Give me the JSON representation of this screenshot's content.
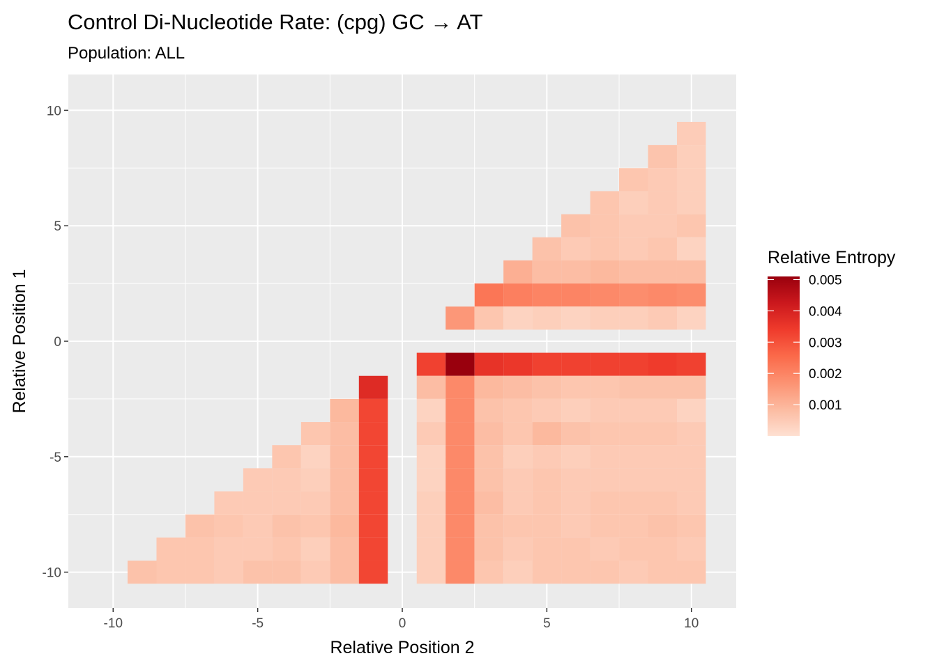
{
  "chart_data": {
    "type": "heatmap",
    "title": "Control Di-Nucleotide Rate: (cpg) GC → AT",
    "subtitle": "Population: ALL",
    "xlabel": "Relative Position 2",
    "ylabel": "Relative Position 1",
    "xlim": [
      -10.5,
      10.5
    ],
    "ylim": [
      -10.5,
      10.5
    ],
    "x_ticks": [
      -10,
      -5,
      0,
      5,
      10
    ],
    "y_ticks": [
      -10,
      -5,
      0,
      5,
      10
    ],
    "x_tick_labels": [
      "-10",
      "-5",
      "0",
      "5",
      "10"
    ],
    "y_tick_labels": [
      "-10",
      "-5",
      "0",
      "5",
      "10"
    ],
    "grid": true,
    "legend": {
      "title": "Relative Entropy",
      "position": "right",
      "min": 0.0,
      "max": 0.0051,
      "ticks": [
        0.001,
        0.002,
        0.003,
        0.004,
        0.005
      ],
      "tick_labels": [
        "0.001",
        "0.002",
        "0.003",
        "0.004",
        "0.005"
      ],
      "colors": [
        "#fee0d2",
        "#fcbba1",
        "#fc9272",
        "#fb6a4a",
        "#ef3b2c",
        "#cb181d",
        "#99000d"
      ]
    },
    "rows": [
      {
        "y": 9,
        "cells": [
          [
            10,
            0.00045
          ]
        ]
      },
      {
        "y": 8,
        "cells": [
          [
            9,
            0.00065
          ],
          [
            10,
            0.0004
          ]
        ]
      },
      {
        "y": 7,
        "cells": [
          [
            8,
            0.0006
          ],
          [
            9,
            0.0005
          ],
          [
            10,
            0.0004
          ]
        ]
      },
      {
        "y": 6,
        "cells": [
          [
            7,
            0.0006
          ],
          [
            8,
            0.0004
          ],
          [
            9,
            0.0005
          ],
          [
            10,
            0.0004
          ]
        ]
      },
      {
        "y": 5,
        "cells": [
          [
            6,
            0.0007
          ],
          [
            7,
            0.0006
          ],
          [
            8,
            0.0005
          ],
          [
            9,
            0.0005
          ],
          [
            10,
            0.0006
          ]
        ]
      },
      {
        "y": 4,
        "cells": [
          [
            5,
            0.0007
          ],
          [
            6,
            0.0005
          ],
          [
            7,
            0.0006
          ],
          [
            8,
            0.0005
          ],
          [
            9,
            0.0006
          ],
          [
            10,
            0.0003
          ]
        ]
      },
      {
        "y": 3,
        "cells": [
          [
            4,
            0.0011
          ],
          [
            5,
            0.0008
          ],
          [
            6,
            0.0008
          ],
          [
            7,
            0.0009
          ],
          [
            8,
            0.0008
          ],
          [
            9,
            0.0008
          ],
          [
            10,
            0.0008
          ]
        ]
      },
      {
        "y": 2,
        "cells": [
          [
            3,
            0.0023
          ],
          [
            4,
            0.0021
          ],
          [
            5,
            0.002
          ],
          [
            6,
            0.002
          ],
          [
            7,
            0.0019
          ],
          [
            8,
            0.0018
          ],
          [
            9,
            0.0019
          ],
          [
            10,
            0.0018
          ]
        ]
      },
      {
        "y": 1,
        "cells": [
          [
            2,
            0.0016
          ],
          [
            3,
            0.0006
          ],
          [
            4,
            0.0003
          ],
          [
            5,
            0.0004
          ],
          [
            6,
            0.0003
          ],
          [
            7,
            0.0004
          ],
          [
            8,
            0.0004
          ],
          [
            9,
            0.0005
          ],
          [
            10,
            0.0003
          ]
        ]
      },
      {
        "y": -1,
        "cells": [
          [
            1,
            0.0033
          ],
          [
            2,
            0.0051
          ],
          [
            3,
            0.0036
          ],
          [
            4,
            0.0035
          ],
          [
            5,
            0.0033
          ],
          [
            6,
            0.0033
          ],
          [
            7,
            0.0033
          ],
          [
            8,
            0.0033
          ],
          [
            9,
            0.0034
          ],
          [
            10,
            0.0033
          ]
        ]
      },
      {
        "y": -2,
        "cells": [
          [
            -1,
            0.0038
          ],
          [
            1,
            0.0008
          ],
          [
            2,
            0.0019
          ],
          [
            3,
            0.0009
          ],
          [
            4,
            0.0008
          ],
          [
            5,
            0.0007
          ],
          [
            6,
            0.0006
          ],
          [
            7,
            0.0006
          ],
          [
            8,
            0.0007
          ],
          [
            9,
            0.0007
          ],
          [
            10,
            0.0007
          ]
        ]
      },
      {
        "y": -3,
        "cells": [
          [
            -2,
            0.0009
          ],
          [
            -1,
            0.0032
          ],
          [
            1,
            0.0003
          ],
          [
            2,
            0.0019
          ],
          [
            3,
            0.0007
          ],
          [
            4,
            0.0006
          ],
          [
            5,
            0.0005
          ],
          [
            6,
            0.0004
          ],
          [
            7,
            0.0005
          ],
          [
            8,
            0.0005
          ],
          [
            9,
            0.0005
          ],
          [
            10,
            0.0003
          ]
        ]
      },
      {
        "y": -4,
        "cells": [
          [
            -3,
            0.0006
          ],
          [
            -2,
            0.0008
          ],
          [
            -1,
            0.0032
          ],
          [
            1,
            0.0005
          ],
          [
            2,
            0.0019
          ],
          [
            3,
            0.0008
          ],
          [
            4,
            0.0006
          ],
          [
            5,
            0.0009
          ],
          [
            6,
            0.0007
          ],
          [
            7,
            0.0006
          ],
          [
            8,
            0.0006
          ],
          [
            9,
            0.0006
          ],
          [
            10,
            0.0005
          ]
        ]
      },
      {
        "y": -5,
        "cells": [
          [
            -4,
            0.0006
          ],
          [
            -3,
            0.0003
          ],
          [
            -2,
            0.0008
          ],
          [
            -1,
            0.0032
          ],
          [
            1,
            0.0003
          ],
          [
            2,
            0.0019
          ],
          [
            3,
            0.0007
          ],
          [
            4,
            0.0004
          ],
          [
            5,
            0.0005
          ],
          [
            6,
            0.0004
          ],
          [
            7,
            0.0005
          ],
          [
            8,
            0.0005
          ],
          [
            9,
            0.0005
          ],
          [
            10,
            0.0005
          ]
        ]
      },
      {
        "y": -6,
        "cells": [
          [
            -5,
            0.0005
          ],
          [
            -4,
            0.0005
          ],
          [
            -3,
            0.0004
          ],
          [
            -2,
            0.0008
          ],
          [
            -1,
            0.0032
          ],
          [
            1,
            0.0003
          ],
          [
            2,
            0.0019
          ],
          [
            3,
            0.0007
          ],
          [
            4,
            0.0005
          ],
          [
            5,
            0.0006
          ],
          [
            6,
            0.0005
          ],
          [
            7,
            0.0005
          ],
          [
            8,
            0.0005
          ],
          [
            9,
            0.0005
          ],
          [
            10,
            0.0005
          ]
        ]
      },
      {
        "y": -7,
        "cells": [
          [
            -6,
            0.0005
          ],
          [
            -5,
            0.0005
          ],
          [
            -4,
            0.0005
          ],
          [
            -3,
            0.0005
          ],
          [
            -2,
            0.0008
          ],
          [
            -1,
            0.0032
          ],
          [
            1,
            0.0004
          ],
          [
            2,
            0.0019
          ],
          [
            3,
            0.0008
          ],
          [
            4,
            0.0005
          ],
          [
            5,
            0.0006
          ],
          [
            6,
            0.0005
          ],
          [
            7,
            0.0006
          ],
          [
            8,
            0.0006
          ],
          [
            9,
            0.0006
          ],
          [
            10,
            0.0005
          ]
        ]
      },
      {
        "y": -8,
        "cells": [
          [
            -7,
            0.0007
          ],
          [
            -6,
            0.0006
          ],
          [
            -5,
            0.0005
          ],
          [
            -4,
            0.0007
          ],
          [
            -3,
            0.0006
          ],
          [
            -2,
            0.0009
          ],
          [
            -1,
            0.0032
          ],
          [
            1,
            0.0004
          ],
          [
            2,
            0.0019
          ],
          [
            3,
            0.0007
          ],
          [
            4,
            0.0006
          ],
          [
            5,
            0.0006
          ],
          [
            6,
            0.0005
          ],
          [
            7,
            0.0006
          ],
          [
            8,
            0.0006
          ],
          [
            9,
            0.0007
          ],
          [
            10,
            0.0006
          ]
        ]
      },
      {
        "y": -9,
        "cells": [
          [
            -8,
            0.0006
          ],
          [
            -7,
            0.0006
          ],
          [
            -6,
            0.0005
          ],
          [
            -5,
            0.0005
          ],
          [
            -4,
            0.0006
          ],
          [
            -3,
            0.0004
          ],
          [
            -2,
            0.0008
          ],
          [
            -1,
            0.0032
          ],
          [
            1,
            0.0004
          ],
          [
            2,
            0.0019
          ],
          [
            3,
            0.0007
          ],
          [
            4,
            0.0005
          ],
          [
            5,
            0.0006
          ],
          [
            6,
            0.0006
          ],
          [
            7,
            0.0005
          ],
          [
            8,
            0.0006
          ],
          [
            9,
            0.0006
          ],
          [
            10,
            0.0005
          ]
        ]
      },
      {
        "y": -10,
        "cells": [
          [
            -9,
            0.0007
          ],
          [
            -8,
            0.0006
          ],
          [
            -7,
            0.0006
          ],
          [
            -6,
            0.0005
          ],
          [
            -5,
            0.0007
          ],
          [
            -4,
            0.0007
          ],
          [
            -3,
            0.0005
          ],
          [
            -2,
            0.0008
          ],
          [
            -1,
            0.0032
          ],
          [
            1,
            0.0004
          ],
          [
            2,
            0.0019
          ],
          [
            3,
            0.0006
          ],
          [
            4,
            0.0004
          ],
          [
            5,
            0.0006
          ],
          [
            6,
            0.0006
          ],
          [
            7,
            0.0006
          ],
          [
            8,
            0.0005
          ],
          [
            9,
            0.0006
          ],
          [
            10,
            0.0006
          ]
        ]
      }
    ]
  }
}
